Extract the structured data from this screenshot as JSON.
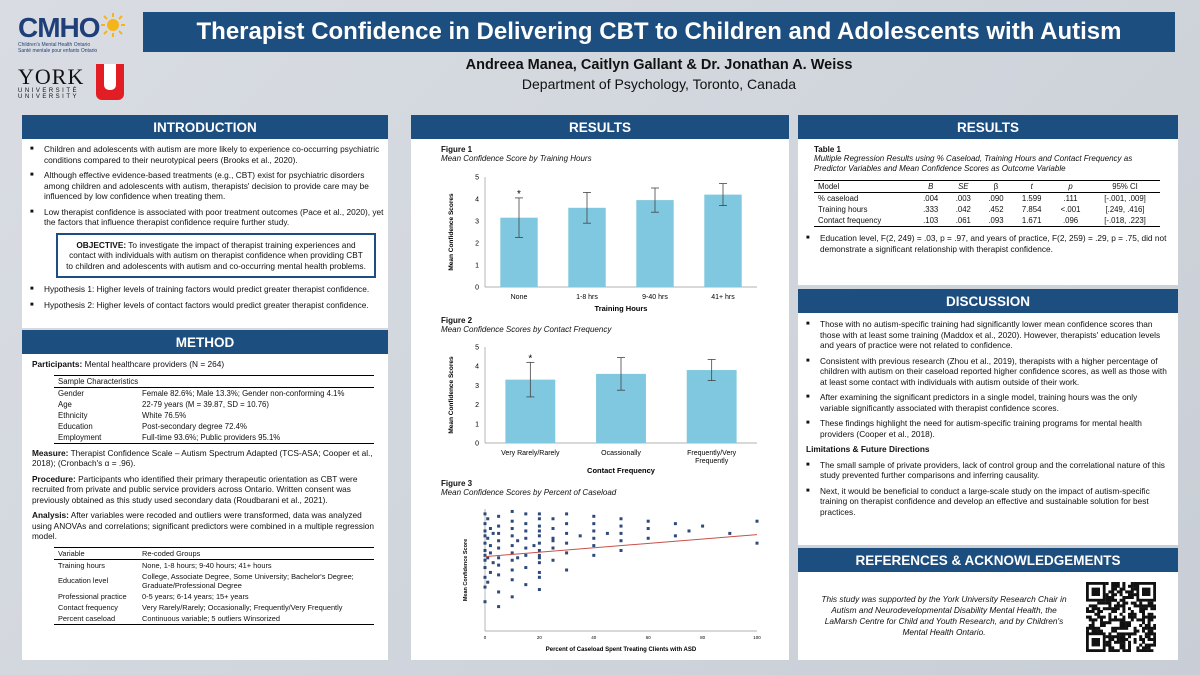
{
  "logos": {
    "cmho_text": "CMHO",
    "cmho_sub1": "Children's Mental Health Ontario",
    "cmho_sub2": "Santé mentale pour enfants Ontario",
    "york_text": "YORK",
    "york_sub": "UNIVERSITÉ UNIVERSITY"
  },
  "title": "Therapist Confidence in Delivering CBT to Children and Adolescents with Autism",
  "authors": "Andreea Manea, Caitlyn Gallant & Dr. Jonathan A. Weiss",
  "department": "Department of Psychology, Toronto, Canada",
  "introduction": {
    "heading": "INTRODUCTION",
    "bullets": [
      "Children and adolescents with autism are more likely to experience co-occurring psychiatric conditions compared to their neurotypical peers (Brooks et al., 2020).",
      "Although effective evidence-based treatments (e.g., CBT) exist for psychiatric disorders among children and adolescents with autism, therapists' decision to provide care may be influenced by low confidence when treating them.",
      "Low therapist confidence is associated with poor treatment outcomes (Pace et al., 2020), yet the factors that influence therapist confidence require further study."
    ],
    "objective_label": "OBJECTIVE:",
    "objective_text": "To investigate the impact of therapist training experiences and contact with individuals with autism on therapist confidence when providing CBT to children and adolescents with autism and co-occurring mental health problems.",
    "hypotheses": [
      "Hypothesis 1: Higher levels of training factors would predict greater therapist confidence.",
      "Hypothesis 2: Higher levels of contact factors would predict greater therapist confidence."
    ]
  },
  "method": {
    "heading": "METHOD",
    "participants_label": "Participants:",
    "participants_text": "Mental healthcare providers (N = 264)",
    "sample_header": "Sample Characteristics",
    "sample_rows": [
      [
        "Gender",
        "Female 82.6%; Male 13.3%; Gender non-conforming 4.1%"
      ],
      [
        "Age",
        "22-79 years (M = 39.87, SD = 10.76)"
      ],
      [
        "Ethnicity",
        "White 76.5%"
      ],
      [
        "Education",
        "Post-secondary degree 72.4%"
      ],
      [
        "Employment",
        "Full-time 93.6%; Public providers 95.1%"
      ]
    ],
    "measure_label": "Measure:",
    "measure_text": "Therapist Confidence Scale – Autism Spectrum Adapted (TCS-ASA; Cooper et al., 2018); (Cronbach's α = .96).",
    "procedure_label": "Procedure:",
    "procedure_text": "Participants who identified their primary therapeutic orientation as CBT were recruited from private and public service providers across Ontario. Written consent was previously obtained as this study used secondary data (Roudbarani et al., 2021).",
    "analysis_label": "Analysis:",
    "analysis_text": "After variables were recoded and outliers were transformed, data was analyzed using ANOVAs and correlations; significant predictors were combined in a multiple regression model.",
    "var_headers": [
      "Variable",
      "Re-coded Groups"
    ],
    "var_rows": [
      [
        "Training hours",
        "None, 1-8 hours; 9-40 hours; 41+ hours"
      ],
      [
        "Education level",
        "College, Associate Degree, Some University; Bachelor's Degree; Graduate/Professional Degree"
      ],
      [
        "Professional practice",
        "0-5 years; 6-14 years; 15+ years"
      ],
      [
        "Contact frequency",
        "Very Rarely/Rarely; Occasionally; Frequently/Very Frequently"
      ],
      [
        "Percent caseload",
        "Continuous variable; 5 outliers Winsorized"
      ]
    ]
  },
  "results_mid": {
    "heading": "RESULTS",
    "fig1_label": "Figure 1",
    "fig1_title": "Mean Confidence Score by Training Hours",
    "fig2_label": "Figure 2",
    "fig2_title": "Mean Confidence Scores by Contact Frequency",
    "fig3_label": "Figure 3",
    "fig3_title": "Mean Confidence Scores by Percent of Caseload"
  },
  "chart_data": [
    {
      "type": "bar",
      "categories": [
        "None",
        "1-8 hrs",
        "9-40 hrs",
        "41+ hrs"
      ],
      "values": [
        3.15,
        3.6,
        3.95,
        4.2
      ],
      "errors": [
        0.9,
        0.7,
        0.55,
        0.5
      ],
      "significance": [
        "*",
        "",
        "",
        ""
      ],
      "ylim": [
        0,
        5
      ],
      "yticks": [
        "0",
        "1",
        "2",
        "3",
        "4",
        "5"
      ],
      "xlabel": "Training Hours",
      "ylabel": "Mean Confidence Scores",
      "color": "#7fc8df"
    },
    {
      "type": "bar",
      "categories": [
        "Very Rarely/Rarely",
        "Ocassionally",
        "Frequently/Very Frequently"
      ],
      "values": [
        3.3,
        3.6,
        3.8
      ],
      "errors": [
        0.9,
        0.85,
        0.55
      ],
      "significance": [
        "*",
        "",
        ""
      ],
      "ylim": [
        0,
        5
      ],
      "yticks": [
        "0",
        "1",
        "2",
        "3",
        "4",
        "5"
      ],
      "xlabel": "Contact Frequency",
      "ylabel": "Mean Confidence Scores",
      "color": "#7fc8df"
    },
    {
      "type": "scatter",
      "xlabel": "Percent of Caseload Spent Treating Clients with ASD",
      "ylabel": "Mean Confidence Score",
      "xticks": [
        "0",
        "20",
        "40",
        "60",
        "80",
        "100"
      ],
      "xlim": [
        0,
        100
      ],
      "ylim": [
        0,
        5
      ],
      "trend": {
        "x": [
          0,
          100
        ],
        "y": [
          3.05,
          3.95
        ],
        "color": "#c9504a"
      },
      "point_color": "#2e4a7a",
      "x": [
        0,
        0,
        0,
        0,
        0,
        0,
        0,
        0,
        0,
        0,
        0,
        0,
        1,
        1,
        1,
        1,
        2,
        2,
        2,
        2,
        3,
        3,
        5,
        5,
        5,
        5,
        5,
        5,
        5,
        5,
        5,
        5,
        10,
        10,
        10,
        10,
        10,
        10,
        10,
        10,
        10,
        10,
        12,
        12,
        15,
        15,
        15,
        15,
        15,
        15,
        15,
        15,
        18,
        20,
        20,
        20,
        20,
        20,
        20,
        20,
        20,
        20,
        20,
        20,
        20,
        20,
        25,
        25,
        25,
        25,
        25,
        25,
        30,
        30,
        30,
        30,
        30,
        30,
        35,
        40,
        40,
        40,
        40,
        40,
        40,
        45,
        50,
        50,
        50,
        50,
        50,
        60,
        60,
        60,
        70,
        70,
        75,
        80,
        90,
        100,
        100
      ],
      "y": [
        1.2,
        1.8,
        2.2,
        2.6,
        2.9,
        3.1,
        3.3,
        3.6,
        3.9,
        4.1,
        4.4,
        4.8,
        2.0,
        3.0,
        3.8,
        4.6,
        2.4,
        3.2,
        3.5,
        4.2,
        2.8,
        4.0,
        1.0,
        1.6,
        2.3,
        2.7,
        3.0,
        3.4,
        3.7,
        4.0,
        4.3,
        4.7,
        1.4,
        2.1,
        2.5,
        2.9,
        3.2,
        3.5,
        3.9,
        4.2,
        4.5,
        4.9,
        3.0,
        3.7,
        1.9,
        2.6,
        3.1,
        3.4,
        3.8,
        4.1,
        4.4,
        4.8,
        3.5,
        1.7,
        2.4,
        2.8,
        3.1,
        3.3,
        3.6,
        3.9,
        4.1,
        4.3,
        4.6,
        4.8,
        2.2,
        3.0,
        3.7,
        2.9,
        3.4,
        3.8,
        4.2,
        4.6,
        2.5,
        3.2,
        3.6,
        4.0,
        4.4,
        4.8,
        3.9,
        3.1,
        3.5,
        3.8,
        4.1,
        4.4,
        4.7,
        4.0,
        3.3,
        3.7,
        4.0,
        4.3,
        4.6,
        3.8,
        4.2,
        4.5,
        3.9,
        4.4,
        4.1,
        4.3,
        4.0,
        3.6,
        4.5
      ]
    },
    {
      "type": "table",
      "title": "Table 1",
      "caption": "Multiple Regression Results using % Caseload, Training Hours and Contact Frequency as Predictor Variables and Mean Confidence Scores as Outcome Variable",
      "headers": [
        "Model",
        "B",
        "SE",
        "β",
        "t",
        "p",
        "95% CI"
      ],
      "rows": [
        [
          "% caseload",
          ".004",
          ".003",
          ".090",
          "1.599",
          ".111",
          "[-.001, .009]"
        ],
        [
          "Training hours",
          ".333",
          ".042",
          ".452",
          "7.854",
          "<.001",
          "[.249, .416]"
        ],
        [
          "Contact frequency",
          ".103",
          ".061",
          ".093",
          "1.671",
          ".096",
          "[-.018, .223]"
        ]
      ]
    }
  ],
  "results_right": {
    "heading": "RESULTS",
    "note": "Education level, F(2, 249) = .03, p = .97, and years of practice, F(2, 259) = .29, p = .75, did not demonstrate a significant relationship with therapist confidence."
  },
  "discussion": {
    "heading": "DISCUSSION",
    "bullets": [
      "Those with no autism-specific training had significantly lower mean confidence scores than those with at least some training (Maddox et al., 2020). However, therapists' education levels and years of practice were not related to confidence.",
      "Consistent with previous research (Zhou et al., 2019), therapists with a higher percentage of children with autism on their caseload reported higher confidence scores, as well as those with at least some contact with individuals with autism outside of their work.",
      "After examining the significant predictors in a single model, training hours was the only variable significantly associated with therapist confidence scores.",
      "These findings highlight the need for autism-specific training programs for mental health providers (Cooper et al., 2018)."
    ],
    "limitations_heading": "Limitations & Future Directions",
    "limitations": [
      "The small sample of private providers, lack of control group and the correlational nature of this study prevented further comparisons and inferring causality.",
      "Next, it would be beneficial to conduct a large-scale study on the impact of autism-specific training on therapist confidence and develop an effective and sustainable solution for best practices."
    ]
  },
  "references": {
    "heading": "REFERENCES & ACKNOWLEDGEMENTS",
    "text": "This study was supported by the York University Research Chair in Autism and Neurodevelopmental Disability Mental Health, the LaMarsh Centre for Child and Youth Research, and by Children's Mental Health Ontario."
  }
}
